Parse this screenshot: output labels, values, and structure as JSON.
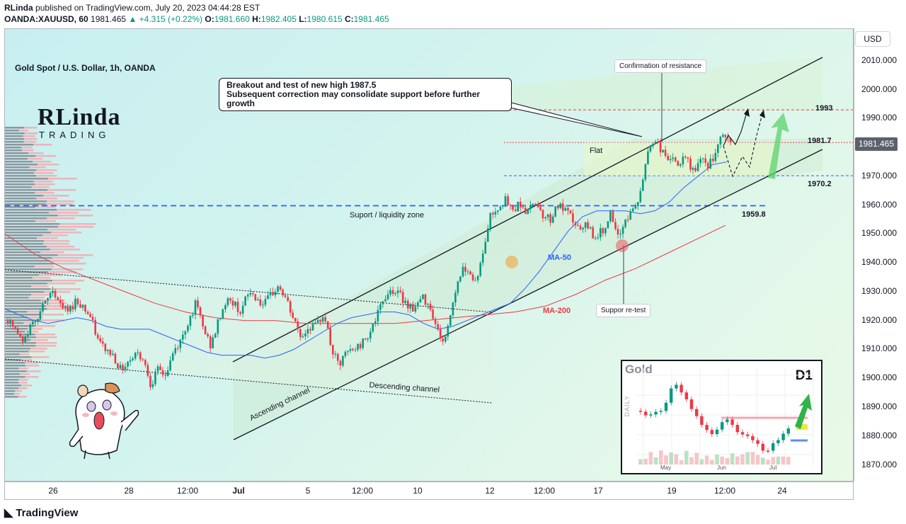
{
  "header": {
    "author": "RLinda",
    "published": "published on TradingView.com, July 20, 2023 04:44:28 EST",
    "symbol": "OANDA:XAUUSD, 60",
    "last": "1981.465",
    "change": "▲ +4.315 (+0.22%)",
    "o_label": "O:",
    "o": "1981.660",
    "h_label": "H:",
    "h": "1982.405",
    "l_label": "L:",
    "l": "1980.615",
    "c_label": "C:",
    "c": "1981.465"
  },
  "symbol_title": "Gold Spot / U.S. Dollar, 1h, OANDA",
  "currency_button": "USD",
  "last_price_label": "1981.465",
  "logo": {
    "name": "RLinda",
    "sub": "TRADING"
  },
  "annotations": {
    "callout_line1": "Breakout and test of new high 1987.5",
    "callout_line2": "Subsequent correction may consolidate support before further growth",
    "confirmation": "Confirmation of resistance",
    "retest": "Suppor re-test",
    "flat": "Flat",
    "support_zone": "Suport / liquidity zone",
    "ascending": "Ascending channel",
    "descending": "Descending channel",
    "ma50": "MA-50",
    "ma200": "MA-200",
    "level_1993": "1993",
    "level_1981": "1981.7",
    "level_1970": "1970.2",
    "level_1959": "1959.8"
  },
  "colors": {
    "bull": "#089981",
    "bear": "#f23645",
    "ma50": "#2962ff",
    "ma200": "#f23645",
    "zone": "#2962ff"
  },
  "inset": {
    "title": "Gold",
    "timeframe": "D1",
    "axis_label": "DAILY",
    "months": [
      "May",
      "Jun",
      "Jul"
    ]
  },
  "footer": {
    "brand": "TradingView"
  },
  "chart_data": {
    "type": "candlestick",
    "title": "Gold Spot / U.S. Dollar, 1h, OANDA",
    "y_ticks": [
      2010,
      2000,
      1990,
      1980,
      1970,
      1960,
      1950,
      1940,
      1930,
      1920,
      1910,
      1900,
      1890,
      1880,
      1870
    ],
    "y_range": [
      1864,
      2021
    ],
    "x_ticks": [
      {
        "label": "26",
        "bold": false
      },
      {
        "label": "28",
        "bold": false
      },
      {
        "label": "12:00",
        "bold": false
      },
      {
        "label": "Jul",
        "bold": true
      },
      {
        "label": "5",
        "bold": false
      },
      {
        "label": "12:00",
        "bold": false
      },
      {
        "label": "10",
        "bold": false
      },
      {
        "label": "12",
        "bold": false
      },
      {
        "label": "12:00",
        "bold": false
      },
      {
        "label": "17",
        "bold": false
      },
      {
        "label": "19",
        "bold": false
      },
      {
        "label": "12:00",
        "bold": false
      },
      {
        "label": "24",
        "bold": false
      }
    ],
    "price_path": [
      1920,
      1917,
      1912,
      1918,
      1922,
      1926,
      1931,
      1925,
      1923,
      1927,
      1925,
      1921,
      1913,
      1910,
      1908,
      1903,
      1906,
      1909,
      1907,
      1898,
      1903,
      1901,
      1909,
      1913,
      1920,
      1926,
      1917,
      1911,
      1920,
      1927,
      1926,
      1923,
      1930,
      1928,
      1925,
      1929,
      1932,
      1927,
      1920,
      1914,
      1918,
      1918,
      1923,
      1910,
      1904,
      1909,
      1910,
      1912,
      1916,
      1921,
      1928,
      1931,
      1929,
      1926,
      1924,
      1928,
      1926,
      1917,
      1912,
      1925,
      1936,
      1939,
      1933,
      1941,
      1956,
      1959,
      1962,
      1958,
      1961,
      1957,
      1962,
      1957,
      1955,
      1960,
      1958,
      1955,
      1951,
      1953,
      1949,
      1951,
      1957,
      1948,
      1955,
      1958,
      1963,
      1979,
      1983,
      1978,
      1976,
      1974,
      1976,
      1972,
      1975,
      1974,
      1977,
      1985,
      1981
    ],
    "ma50": [
      1924,
      1922,
      1920,
      1919,
      1920,
      1921,
      1920,
      1918,
      1917,
      1917,
      1917,
      1915,
      1913,
      1911,
      1909,
      1908,
      1908,
      1908,
      1907,
      1908,
      1910,
      1913,
      1916,
      1919,
      1921,
      1922,
      1923,
      1923,
      1922,
      1919,
      1917,
      1918,
      1920,
      1922,
      1924,
      1926,
      1931,
      1937,
      1944,
      1951,
      1956,
      1958,
      1958,
      1958,
      1957,
      1958,
      1961,
      1966,
      1970,
      1974,
      1975
    ],
    "ma200": [
      1950,
      1943,
      1938,
      1934,
      1930,
      1926,
      1923,
      1921,
      1920,
      1920,
      1919,
      1919,
      1919,
      1919,
      1920,
      1921,
      1922,
      1923,
      1925,
      1929,
      1934,
      1938,
      1943,
      1948,
      1953
    ],
    "levels": {
      "resistance_target": 1993,
      "flat_top": 1981.7,
      "flat_bottom": 1970.2,
      "support_zone": 1959.8,
      "new_high": 1987.5
    }
  }
}
